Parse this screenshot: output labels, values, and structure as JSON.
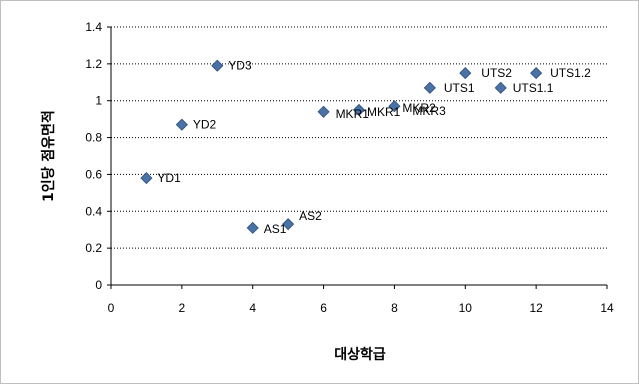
{
  "chart_data": {
    "type": "scatter",
    "title": "",
    "xlabel": "대상학급",
    "ylabel": "1인당 점유면적",
    "xlim": [
      0,
      14
    ],
    "ylim": [
      0,
      1.4
    ],
    "x_ticks": [
      "0",
      "2",
      "4",
      "6",
      "8",
      "10",
      "12",
      "14"
    ],
    "y_ticks": [
      "0",
      "0.2",
      "0.4",
      "0.6",
      "0.8",
      "1",
      "1.2",
      "1.4"
    ],
    "grid": "horizontal dotted",
    "legend": "none",
    "marker_color": "#4a72a6",
    "points": [
      {
        "label": "YD1",
        "x": 1,
        "y": 0.58
      },
      {
        "label": "YD2",
        "x": 2,
        "y": 0.87
      },
      {
        "label": "YD3",
        "x": 3,
        "y": 1.19
      },
      {
        "label": "AS1",
        "x": 4,
        "y": 0.31
      },
      {
        "label": "AS2",
        "x": 5,
        "y": 0.33
      },
      {
        "label": "MKR1",
        "x": 6,
        "y": 0.94
      },
      {
        "label": "MKR1",
        "x": 7,
        "y": 0.95
      },
      {
        "label": "MKR2",
        "x": 8,
        "y": 0.97
      },
      {
        "label": "UTS1",
        "x": 9,
        "y": 1.07
      },
      {
        "label": "UTS2",
        "x": 10,
        "y": 1.15
      },
      {
        "label": "UTS1.1",
        "x": 11,
        "y": 1.07
      },
      {
        "label": "UTS1.2",
        "x": 12,
        "y": 1.15
      },
      {
        "label": "MKR3",
        "x": null,
        "y": null
      }
    ]
  }
}
